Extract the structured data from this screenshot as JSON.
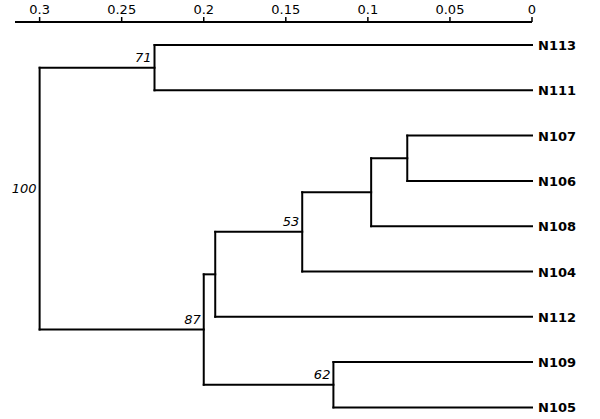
{
  "chart_data": {
    "type": "dendrogram",
    "xlim": [
      0.315,
      0
    ],
    "xticks": [
      0,
      0.05,
      0.1,
      0.15,
      0.2,
      0.25,
      0.3
    ],
    "tree": {
      "height": 0.3,
      "support": 100,
      "children": [
        {
          "height": 0.23,
          "support": 71,
          "children": [
            {
              "label": "N113"
            },
            {
              "label": "N111"
            }
          ]
        },
        {
          "height": 0.2,
          "support": 87,
          "children": [
            {
              "height": 0.193,
              "children": [
                {
                  "height": 0.14,
                  "support": 53,
                  "children": [
                    {
                      "height": 0.098,
                      "children": [
                        {
                          "height": 0.076,
                          "children": [
                            {
                              "label": "N107"
                            },
                            {
                              "label": "N106"
                            }
                          ]
                        },
                        {
                          "label": "N108"
                        }
                      ]
                    },
                    {
                      "label": "N104"
                    }
                  ]
                },
                {
                  "label": "N112"
                }
              ]
            },
            {
              "height": 0.121,
              "support": 62,
              "children": [
                {
                  "label": "N109"
                },
                {
                  "label": "N105"
                }
              ]
            }
          ]
        }
      ]
    }
  }
}
